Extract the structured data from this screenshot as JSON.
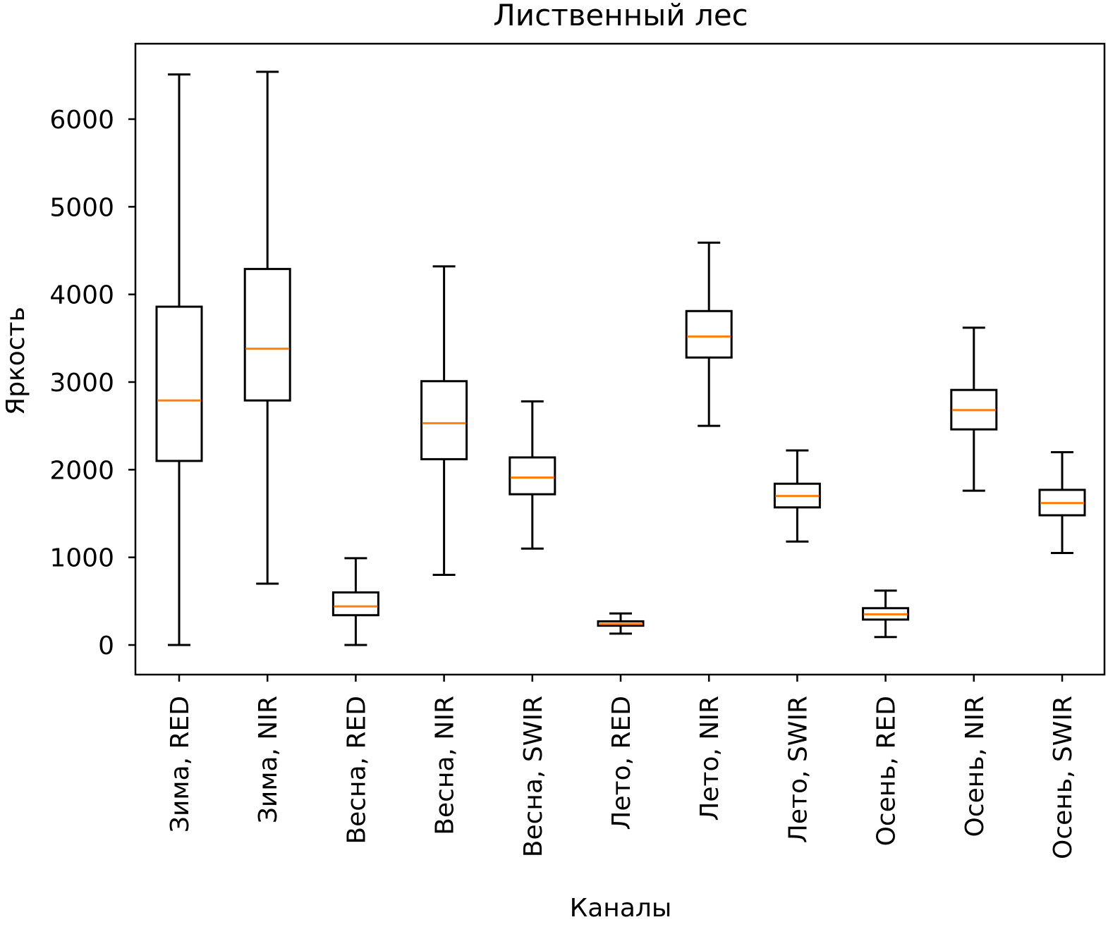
{
  "chart_data": {
    "type": "boxplot",
    "title": "Лиственный лес",
    "xlabel": "Каналы",
    "ylabel": "Яркость",
    "ylim": [
      -330,
      6870
    ],
    "yticks": [
      0,
      1000,
      2000,
      3000,
      4000,
      5000,
      6000
    ],
    "ytick_labels": [
      "0",
      "1000",
      "2000",
      "3000",
      "4000",
      "5000",
      "6000"
    ],
    "grid": false,
    "categories": [
      "Зима, RED",
      "Зима, NIR",
      "Весна, RED",
      "Весна, NIR",
      "Весна, SWIR",
      "Лето, RED",
      "Лето, NIR",
      "Лето, SWIR",
      "Осень, RED",
      "Осень, NIR",
      "Осень, SWIR"
    ],
    "boxes": [
      {
        "whisker_low": 0,
        "q1": 2100,
        "median": 2790,
        "q3": 3860,
        "whisker_high": 6510
      },
      {
        "whisker_low": 700,
        "q1": 2790,
        "median": 3380,
        "q3": 4290,
        "whisker_high": 6540
      },
      {
        "whisker_low": 0,
        "q1": 340,
        "median": 440,
        "q3": 600,
        "whisker_high": 990
      },
      {
        "whisker_low": 800,
        "q1": 2120,
        "median": 2530,
        "q3": 3010,
        "whisker_high": 4320
      },
      {
        "whisker_low": 1100,
        "q1": 1720,
        "median": 1910,
        "q3": 2140,
        "whisker_high": 2780
      },
      {
        "whisker_low": 130,
        "q1": 220,
        "median": 240,
        "q3": 270,
        "whisker_high": 360
      },
      {
        "whisker_low": 2500,
        "q1": 3280,
        "median": 3520,
        "q3": 3810,
        "whisker_high": 4590
      },
      {
        "whisker_low": 1180,
        "q1": 1570,
        "median": 1700,
        "q3": 1840,
        "whisker_high": 2220
      },
      {
        "whisker_low": 90,
        "q1": 290,
        "median": 350,
        "q3": 420,
        "whisker_high": 620
      },
      {
        "whisker_low": 1760,
        "q1": 2460,
        "median": 2680,
        "q3": 2910,
        "whisker_high": 3620
      },
      {
        "whisker_low": 1050,
        "q1": 1480,
        "median": 1620,
        "q3": 1770,
        "whisker_high": 2200
      }
    ],
    "colors": {
      "box": "#000000",
      "median": "#ff7f0e",
      "background": "#ffffff"
    }
  }
}
